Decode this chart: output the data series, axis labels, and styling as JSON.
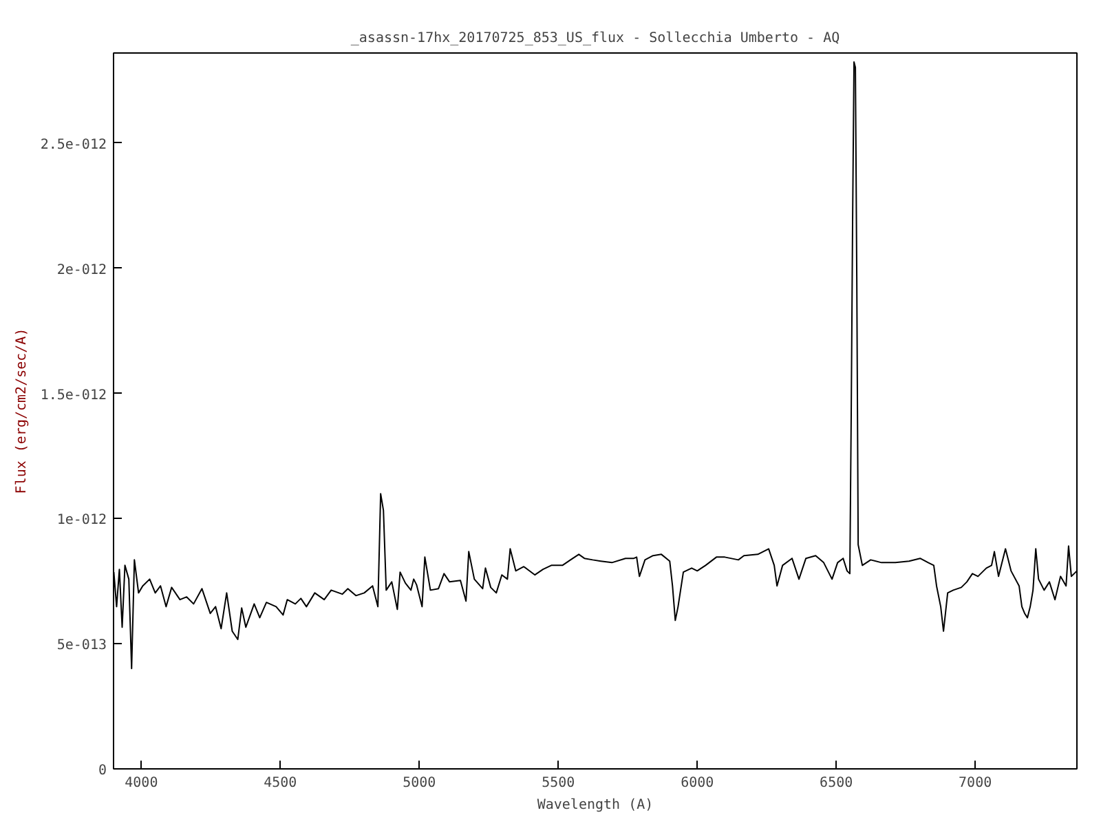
{
  "chart_data": {
    "type": "line",
    "title": "_asassn-17hx_20170725_853_US_flux - Sollecchia Umberto - AQ",
    "xlabel": "Wavelength (A)",
    "ylabel": "Flux (erg/cm2/sec/A)",
    "xlim": [
      3900,
      7366
    ],
    "ylim": [
      0,
      2.86e-12
    ],
    "xticks": [
      4000,
      4500,
      5000,
      5500,
      6000,
      6500,
      7000
    ],
    "yticks": [
      0,
      {
        "value": 5e-13,
        "label": "5e-013"
      },
      {
        "value": 1e-12,
        "label": "1e-012"
      },
      {
        "value": 1.5e-12,
        "label": "1.5e-012"
      },
      {
        "value": 2e-12,
        "label": "2e-012"
      },
      {
        "value": 2.5e-12,
        "label": "2.5e-012"
      }
    ],
    "grid": false,
    "marker": "none",
    "line_style": "solid",
    "series": [
      {
        "color": "#000000",
        "x": [
          3901,
          3911,
          3921,
          3931,
          3941,
          3955,
          3965,
          3975,
          3990,
          4005,
          4030,
          4050,
          4069,
          4089,
          4109,
          4139,
          4163,
          4188,
          4218,
          4248,
          4267,
          4287,
          4307,
          4327,
          4347,
          4361,
          4376,
          4406,
          4426,
          4450,
          4485,
          4510,
          4525,
          4554,
          4574,
          4594,
          4624,
          4658,
          4683,
          4723,
          4743,
          4772,
          4802,
          4832,
          4851,
          4861,
          4871,
          4881,
          4901,
          4921,
          4931,
          4950,
          4970,
          4980,
          4990,
          5010,
          5020,
          5040,
          5069,
          5089,
          5109,
          5148,
          5168,
          5178,
          5198,
          5228,
          5238,
          5257,
          5277,
          5297,
          5317,
          5327,
          5347,
          5376,
          5416,
          5445,
          5475,
          5515,
          5544,
          5574,
          5594,
          5624,
          5653,
          5693,
          5742,
          5772,
          5782,
          5792,
          5812,
          5841,
          5871,
          5901,
          5911,
          5921,
          5931,
          5950,
          5980,
          6000,
          6030,
          6069,
          6099,
          6148,
          6168,
          6218,
          6257,
          6277,
          6287,
          6307,
          6341,
          6366,
          6391,
          6426,
          6455,
          6485,
          6505,
          6525,
          6539,
          6549,
          6554,
          6559,
          6564,
          6569,
          6574,
          6579,
          6594,
          6624,
          6663,
          6713,
          6762,
          6802,
          6831,
          6851,
          6861,
          6876,
          6886,
          6901,
          6921,
          6950,
          6970,
          6990,
          7010,
          7040,
          7059,
          7069,
          7084,
          7109,
          7129,
          7158,
          7168,
          7178,
          7188,
          7198,
          7208,
          7218,
          7228,
          7248,
          7267,
          7287,
          7307,
          7327,
          7336,
          7346,
          7366
        ],
        "values": [
          7.86e-13,
          6.48e-13,
          7.97e-13,
          5.66e-13,
          8.13e-13,
          7.58e-13,
          4.01e-13,
          8.35e-13,
          7.03e-13,
          7.31e-13,
          7.58e-13,
          7.03e-13,
          7.31e-13,
          6.48e-13,
          7.25e-13,
          6.76e-13,
          6.87e-13,
          6.59e-13,
          7.2e-13,
          6.21e-13,
          6.48e-13,
          5.6e-13,
          7.03e-13,
          5.5e-13,
          5.17e-13,
          6.43e-13,
          5.66e-13,
          6.59e-13,
          6.04e-13,
          6.65e-13,
          6.48e-13,
          6.15e-13,
          6.76e-13,
          6.59e-13,
          6.81e-13,
          6.48e-13,
          7.03e-13,
          6.76e-13,
          7.14e-13,
          6.98e-13,
          7.2e-13,
          6.92e-13,
          7.03e-13,
          7.31e-13,
          6.48e-13,
          1.099e-12,
          1.033e-12,
          7.14e-13,
          7.47e-13,
          6.37e-13,
          7.86e-13,
          7.42e-13,
          7.14e-13,
          7.58e-13,
          7.36e-13,
          6.48e-13,
          8.46e-13,
          7.14e-13,
          7.2e-13,
          7.8e-13,
          7.47e-13,
          7.53e-13,
          6.7e-13,
          8.68e-13,
          7.58e-13,
          7.2e-13,
          8.02e-13,
          7.25e-13,
          7.03e-13,
          7.75e-13,
          7.58e-13,
          8.79e-13,
          7.91e-13,
          8.08e-13,
          7.75e-13,
          7.97e-13,
          8.13e-13,
          8.13e-13,
          8.35e-13,
          8.57e-13,
          8.41e-13,
          8.35e-13,
          8.3e-13,
          8.24e-13,
          8.41e-13,
          8.41e-13,
          8.46e-13,
          7.69e-13,
          8.35e-13,
          8.52e-13,
          8.57e-13,
          8.3e-13,
          7.31e-13,
          5.93e-13,
          6.48e-13,
          7.86e-13,
          8.02e-13,
          7.91e-13,
          8.13e-13,
          8.46e-13,
          8.46e-13,
          8.35e-13,
          8.52e-13,
          8.57e-13,
          8.79e-13,
          8.13e-13,
          7.31e-13,
          8.13e-13,
          8.41e-13,
          7.58e-13,
          8.41e-13,
          8.52e-13,
          8.24e-13,
          7.58e-13,
          8.24e-13,
          8.41e-13,
          7.91e-13,
          7.8e-13,
          1.418e-12,
          2.187e-12,
          2.824e-12,
          2.802e-12,
          1.967e-12,
          8.96e-13,
          8.13e-13,
          8.35e-13,
          8.24e-13,
          8.24e-13,
          8.3e-13,
          8.41e-13,
          8.24e-13,
          8.13e-13,
          7.31e-13,
          6.48e-13,
          5.5e-13,
          7.03e-13,
          7.14e-13,
          7.25e-13,
          7.47e-13,
          7.8e-13,
          7.69e-13,
          8.02e-13,
          8.13e-13,
          8.68e-13,
          7.69e-13,
          8.79e-13,
          7.91e-13,
          7.31e-13,
          6.48e-13,
          6.21e-13,
          6.04e-13,
          6.48e-13,
          7.14e-13,
          8.79e-13,
          7.58e-13,
          7.14e-13,
          7.47e-13,
          6.76e-13,
          7.69e-13,
          7.31e-13,
          8.9e-13,
          7.69e-13,
          7.91e-13
        ]
      }
    ]
  }
}
